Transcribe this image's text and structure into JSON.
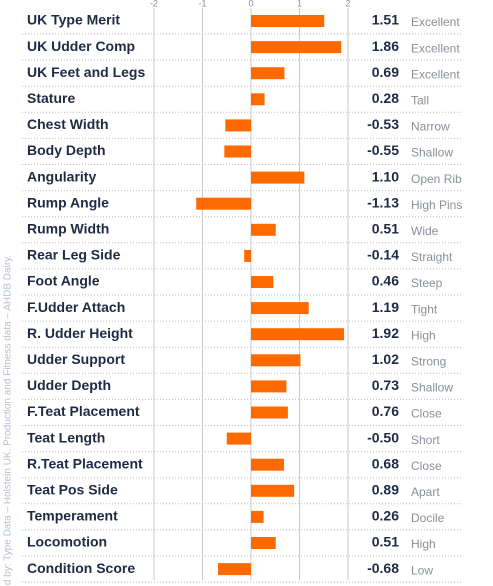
{
  "chart_data": {
    "type": "bar",
    "orientation": "horizontal",
    "categories": [
      "UK Type Merit",
      "UK Udder Comp",
      "UK Feet and Legs",
      "Stature",
      "Chest Width",
      "Body Depth",
      "Angularity",
      "Rump Angle",
      "Rump Width",
      "Rear Leg Side",
      "Foot Angle",
      "F.Udder Attach",
      "R. Udder Height",
      "Udder Support",
      "Udder Depth",
      "F.Teat Placement",
      "Teat Length",
      "R.Teat Placement",
      "Teat Pos Side",
      "Temperament",
      "Locomotion",
      "Condition Score"
    ],
    "values": [
      1.51,
      1.86,
      0.69,
      0.28,
      -0.53,
      -0.55,
      1.1,
      -1.13,
      0.51,
      -0.14,
      0.46,
      1.19,
      1.92,
      1.02,
      0.73,
      0.76,
      -0.5,
      0.68,
      0.89,
      0.26,
      0.51,
      -0.68
    ],
    "value_labels": [
      "1.51",
      "1.86",
      "0.69",
      "0.28",
      "-0.53",
      "-0.55",
      "1.10",
      "-1.13",
      "0.51",
      "-0.14",
      "0.46",
      "1.19",
      "1.92",
      "1.02",
      "0.73",
      "0.76",
      "-0.50",
      "0.68",
      "0.89",
      "0.26",
      "0.51",
      "-0.68"
    ],
    "descriptors": [
      "Excellent",
      "Excellent",
      "Excellent",
      "Tall",
      "Narrow",
      "Shallow",
      "Open Rib",
      "High Pins",
      "Wide",
      "Straight",
      "Steep",
      "Tight",
      "High",
      "Strong",
      "Shallow",
      "Close",
      "Short",
      "Close",
      "Apart",
      "Docile",
      "High",
      "Low"
    ],
    "color": "#ff6a00",
    "xlim": [
      -2,
      2
    ],
    "xticks": [
      -2,
      -1,
      0,
      1,
      2
    ],
    "grid": true,
    "source": "d by: Type Data – Holstein UK. Production and Fitness data – AHDB Dairy."
  }
}
